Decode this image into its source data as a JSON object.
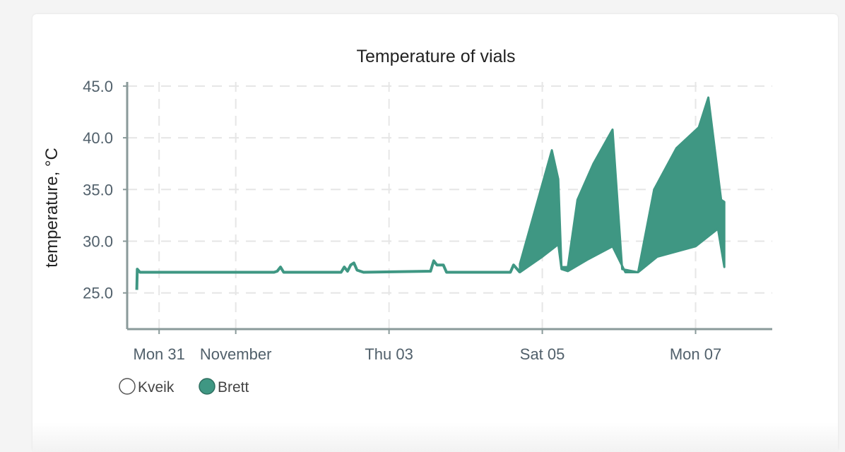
{
  "chart_data": {
    "type": "line",
    "title": "Temperature of vials",
    "xlabel": "",
    "ylabel": "temperature, °C",
    "ylim": [
      21.5,
      45.4
    ],
    "yticks": [
      25.0,
      30.0,
      35.0,
      40.0,
      45.0
    ],
    "ytick_labels": [
      "25.0",
      "30.0",
      "35.0",
      "40.0",
      "45.0"
    ],
    "xlim": [
      "2022-10-30T14:00",
      "2022-11-08T00:00"
    ],
    "xticks": [
      {
        "at": "2022-10-31T00:00",
        "label": "Mon 31"
      },
      {
        "at": "2022-11-01T00:00",
        "label": "November"
      },
      {
        "at": "2022-11-03T00:00",
        "label": "Thu 03"
      },
      {
        "at": "2022-11-05T00:00",
        "label": "Sat 05"
      },
      {
        "at": "2022-11-07T00:00",
        "label": "Mon 07"
      }
    ],
    "grid": true,
    "legend_position": "bottom-left",
    "series": [
      {
        "name": "Kveik",
        "visible": false,
        "color": "#ffffff",
        "points": []
      },
      {
        "name": "Brett",
        "visible": true,
        "color": "#3f9783",
        "points": [
          [
            "2022-10-30T17:00",
            25.3
          ],
          [
            "2022-10-30T17:10",
            27.3
          ],
          [
            "2022-10-30T18:00",
            27.0
          ],
          [
            "2022-10-31T12:00",
            27.0
          ],
          [
            "2022-11-01T12:00",
            27.0
          ],
          [
            "2022-11-01T13:00",
            27.1
          ],
          [
            "2022-11-01T14:00",
            27.5
          ],
          [
            "2022-11-01T15:00",
            27.0
          ],
          [
            "2022-11-02T09:00",
            27.0
          ],
          [
            "2022-11-02T10:00",
            27.5
          ],
          [
            "2022-11-02T11:00",
            27.1
          ],
          [
            "2022-11-02T12:00",
            27.7
          ],
          [
            "2022-11-02T13:00",
            27.9
          ],
          [
            "2022-11-02T14:00",
            27.2
          ],
          [
            "2022-11-02T16:00",
            27.0
          ],
          [
            "2022-11-03T13:00",
            27.1
          ],
          [
            "2022-11-03T14:00",
            28.1
          ],
          [
            "2022-11-03T15:00",
            27.7
          ],
          [
            "2022-11-03T17:00",
            27.7
          ],
          [
            "2022-11-03T18:00",
            27.0
          ],
          [
            "2022-11-04T14:00",
            27.0
          ],
          [
            "2022-11-04T15:00",
            27.7
          ],
          [
            "2022-11-04T17:00",
            27.0
          ]
        ],
        "band": {
          "lower": [
            [
              "2022-11-04T17:00",
              27.0
            ],
            [
              "2022-11-05T00:00",
              28.5
            ],
            [
              "2022-11-05T05:00",
              29.7
            ],
            [
              "2022-11-05T06:00",
              27.3
            ],
            [
              "2022-11-05T08:00",
              27.1
            ],
            [
              "2022-11-05T14:00",
              28.2
            ],
            [
              "2022-11-05T22:00",
              29.5
            ],
            [
              "2022-11-06T02:00",
              27.0
            ],
            [
              "2022-11-06T06:00",
              27.0
            ],
            [
              "2022-11-06T12:00",
              28.5
            ],
            [
              "2022-11-07T00:00",
              29.5
            ],
            [
              "2022-11-07T07:00",
              31.2
            ],
            [
              "2022-11-07T09:00",
              27.5
            ]
          ],
          "upper": [
            [
              "2022-11-04T17:00",
              27.8
            ],
            [
              "2022-11-05T03:00",
              38.8
            ],
            [
              "2022-11-05T05:00",
              36.0
            ],
            [
              "2022-11-05T06:00",
              27.5
            ],
            [
              "2022-11-05T08:00",
              27.5
            ],
            [
              "2022-11-05T11:00",
              34.0
            ],
            [
              "2022-11-05T16:00",
              37.5
            ],
            [
              "2022-11-05T22:00",
              40.8
            ],
            [
              "2022-11-06T01:00",
              27.3
            ],
            [
              "2022-11-06T06:00",
              27.0
            ],
            [
              "2022-11-06T11:00",
              35.0
            ],
            [
              "2022-11-06T18:00",
              39.0
            ],
            [
              "2022-11-07T01:00",
              41.0
            ],
            [
              "2022-11-07T04:00",
              43.9
            ],
            [
              "2022-11-07T08:00",
              34.0
            ],
            [
              "2022-11-07T09:00",
              33.8
            ]
          ]
        }
      }
    ]
  }
}
